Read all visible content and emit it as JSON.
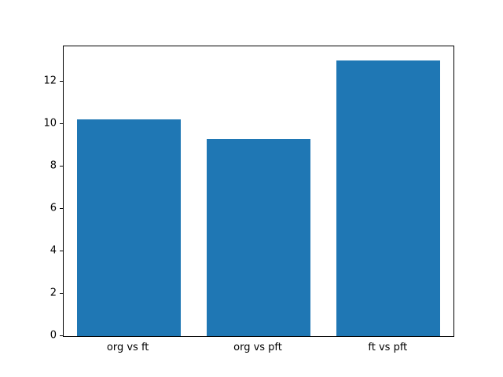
{
  "chart_data": {
    "type": "bar",
    "title": "",
    "xlabel": "",
    "ylabel": "",
    "categories": [
      "org vs ft",
      "org vs pft",
      "ft vs pft"
    ],
    "values": [
      10.2,
      9.3,
      13.0
    ],
    "bar_color": "#1f77b4",
    "ylim": [
      0,
      13.65
    ],
    "yticks": [
      0,
      2,
      4,
      6,
      8,
      10,
      12
    ],
    "grid": false,
    "legend": null,
    "spine_color": "#000000",
    "background_color": "#ffffff"
  }
}
